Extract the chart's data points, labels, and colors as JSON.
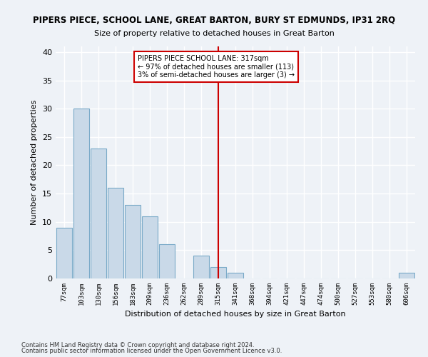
{
  "title": "PIPERS PIECE, SCHOOL LANE, GREAT BARTON, BURY ST EDMUNDS, IP31 2RQ",
  "subtitle": "Size of property relative to detached houses in Great Barton",
  "xlabel": "Distribution of detached houses by size in Great Barton",
  "ylabel": "Number of detached properties",
  "bin_labels": [
    "77sqm",
    "103sqm",
    "130sqm",
    "156sqm",
    "183sqm",
    "209sqm",
    "236sqm",
    "262sqm",
    "289sqm",
    "315sqm",
    "341sqm",
    "368sqm",
    "394sqm",
    "421sqm",
    "447sqm",
    "474sqm",
    "500sqm",
    "527sqm",
    "553sqm",
    "580sqm",
    "606sqm"
  ],
  "bar_values": [
    9,
    30,
    23,
    16,
    13,
    11,
    6,
    0,
    4,
    2,
    1,
    0,
    0,
    0,
    0,
    0,
    0,
    0,
    0,
    0,
    1
  ],
  "bar_color": "#c9d9e8",
  "bar_edgecolor": "#7aaac8",
  "vline_color": "#cc0000",
  "annotation_text": "PIPERS PIECE SCHOOL LANE: 317sqm\n← 97% of detached houses are smaller (113)\n3% of semi-detached houses are larger (3) →",
  "annotation_box_color": "#ffffff",
  "annotation_box_edgecolor": "#cc0000",
  "ylim": [
    0,
    41
  ],
  "yticks": [
    0,
    5,
    10,
    15,
    20,
    25,
    30,
    35,
    40
  ],
  "footnote1": "Contains HM Land Registry data © Crown copyright and database right 2024.",
  "footnote2": "Contains public sector information licensed under the Open Government Licence v3.0.",
  "background_color": "#eef2f7",
  "grid_color": "#ffffff"
}
